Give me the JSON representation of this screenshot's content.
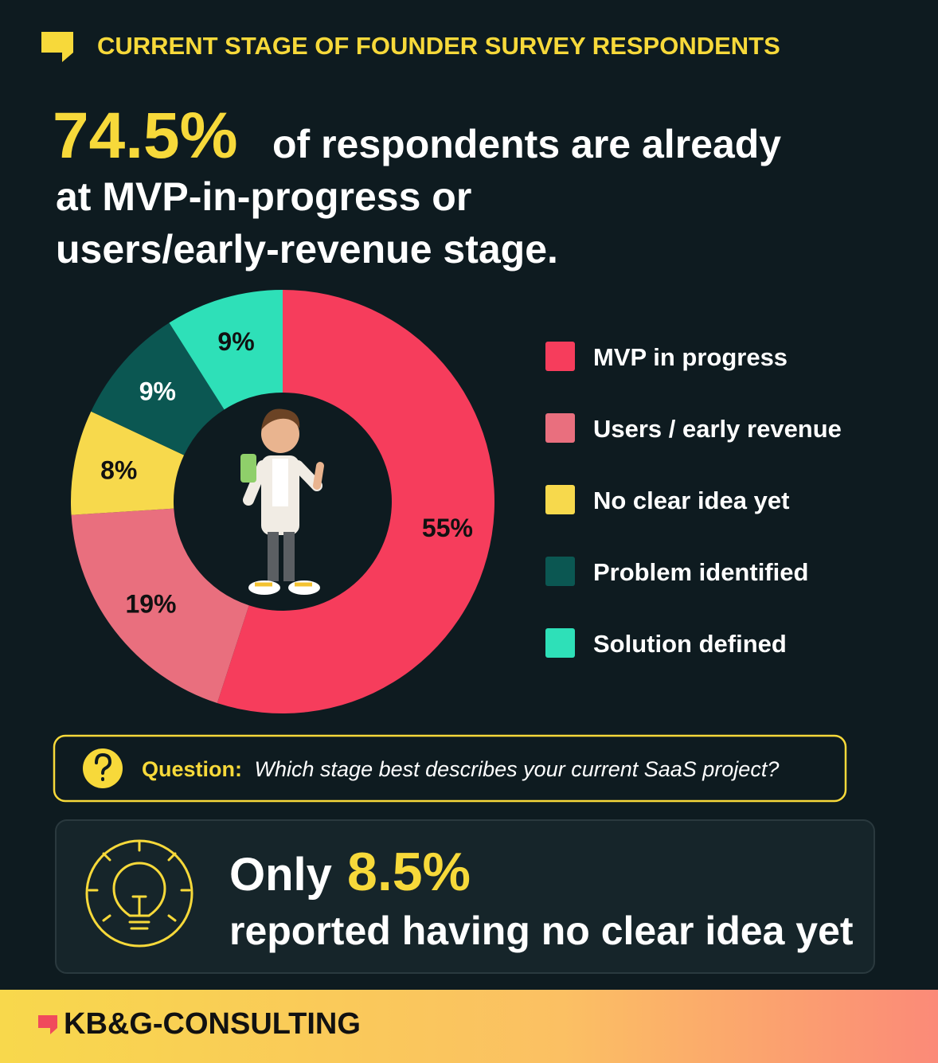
{
  "header": {
    "title": "CURRENT STAGE OF FOUNDER SURVEY RESPONDENTS"
  },
  "headline": {
    "highlight": "74.5%",
    "lines": [
      "of respondents are already",
      "at MVP-in-progress or",
      "users/early-revenue stage."
    ]
  },
  "chart_data": {
    "type": "donut",
    "categories": [
      "MVP in progress",
      "Users / early revenue",
      "No clear idea yet",
      "Problem identified",
      "Solution defined"
    ],
    "values": [
      55,
      19,
      8,
      9,
      9
    ],
    "value_labels": [
      "55%",
      "19%",
      "8%",
      "9%",
      "9%"
    ],
    "colors": [
      "#f63d5c",
      "#e96f7e",
      "#f7d94c",
      "#0b5752",
      "#2ee0b8"
    ],
    "legend": "right"
  },
  "question": {
    "label": "Question:",
    "text": "Which stage best describes your current SaaS project?"
  },
  "callout": {
    "prefix": "Only",
    "highlight": "8.5%",
    "text": "reported having no clear idea yet"
  },
  "footer": {
    "brand": "KB&G-CONSULTING"
  }
}
